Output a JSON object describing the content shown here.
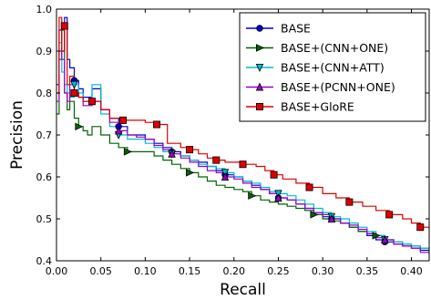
{
  "chart_data": {
    "type": "line",
    "title": "",
    "xlabel": "Recall",
    "ylabel": "Precision",
    "xlim": [
      0.0,
      0.42
    ],
    "ylim": [
      0.4,
      1.0
    ],
    "xticks": [
      "0.00",
      "0.05",
      "0.10",
      "0.15",
      "0.20",
      "0.25",
      "0.30",
      "0.35",
      "0.40"
    ],
    "yticks": [
      "0.4",
      "0.5",
      "0.6",
      "0.7",
      "0.8",
      "0.9",
      "1.0"
    ],
    "grid": false,
    "legend_position": "top-right",
    "series": [
      {
        "name": "BASE",
        "color": "#0000cc",
        "marker": "circle",
        "x": [
          0.0,
          0.003,
          0.006,
          0.009,
          0.012,
          0.015,
          0.02,
          0.025,
          0.03,
          0.04,
          0.05,
          0.06,
          0.07,
          0.08,
          0.09,
          0.1,
          0.11,
          0.12,
          0.13,
          0.14,
          0.15,
          0.16,
          0.17,
          0.18,
          0.19,
          0.2,
          0.21,
          0.22,
          0.23,
          0.24,
          0.25,
          0.26,
          0.27,
          0.28,
          0.29,
          0.3,
          0.31,
          0.32,
          0.33,
          0.34,
          0.35,
          0.36,
          0.37,
          0.38,
          0.39,
          0.4,
          0.41,
          0.42
        ],
        "y": [
          0.82,
          0.95,
          0.9,
          0.98,
          0.88,
          0.86,
          0.83,
          0.81,
          0.79,
          0.81,
          0.76,
          0.74,
          0.72,
          0.7,
          0.7,
          0.69,
          0.68,
          0.67,
          0.66,
          0.65,
          0.64,
          0.635,
          0.625,
          0.615,
          0.605,
          0.6,
          0.59,
          0.58,
          0.57,
          0.56,
          0.55,
          0.545,
          0.535,
          0.525,
          0.515,
          0.505,
          0.5,
          0.49,
          0.48,
          0.47,
          0.46,
          0.45,
          0.445,
          0.44,
          0.435,
          0.43,
          0.425,
          0.42
        ]
      },
      {
        "name": "BASE+(CNN+ONE)",
        "color": "#006400",
        "marker": "triangle-right",
        "x": [
          0.0,
          0.003,
          0.006,
          0.009,
          0.012,
          0.015,
          0.02,
          0.025,
          0.03,
          0.035,
          0.04,
          0.05,
          0.06,
          0.07,
          0.08,
          0.09,
          0.1,
          0.11,
          0.12,
          0.13,
          0.14,
          0.15,
          0.16,
          0.17,
          0.18,
          0.19,
          0.2,
          0.21,
          0.22,
          0.23,
          0.24,
          0.25,
          0.26,
          0.27,
          0.28,
          0.29,
          0.3,
          0.31,
          0.32,
          0.33,
          0.34,
          0.35,
          0.36,
          0.37,
          0.38,
          0.39,
          0.4,
          0.41,
          0.42
        ],
        "y": [
          0.75,
          0.88,
          0.95,
          0.8,
          0.76,
          0.78,
          0.74,
          0.72,
          0.71,
          0.7,
          0.72,
          0.7,
          0.68,
          0.67,
          0.66,
          0.66,
          0.66,
          0.65,
          0.64,
          0.63,
          0.62,
          0.61,
          0.6,
          0.59,
          0.58,
          0.575,
          0.57,
          0.565,
          0.555,
          0.545,
          0.54,
          0.535,
          0.53,
          0.525,
          0.52,
          0.51,
          0.5,
          0.495,
          0.49,
          0.48,
          0.47,
          0.465,
          0.46,
          0.45,
          0.445,
          0.44,
          0.435,
          0.43,
          0.425
        ]
      },
      {
        "name": "BASE+(CNN+ATT)",
        "color": "#00bcd4",
        "marker": "triangle-down",
        "x": [
          0.0,
          0.003,
          0.006,
          0.009,
          0.012,
          0.015,
          0.02,
          0.025,
          0.03,
          0.04,
          0.05,
          0.06,
          0.07,
          0.08,
          0.09,
          0.1,
          0.11,
          0.12,
          0.13,
          0.14,
          0.15,
          0.16,
          0.17,
          0.18,
          0.19,
          0.2,
          0.21,
          0.22,
          0.23,
          0.24,
          0.25,
          0.26,
          0.27,
          0.28,
          0.29,
          0.3,
          0.31,
          0.32,
          0.33,
          0.34,
          0.35,
          0.36,
          0.37,
          0.38,
          0.39,
          0.4,
          0.41,
          0.42
        ],
        "y": [
          0.8,
          0.92,
          0.85,
          0.82,
          0.8,
          0.79,
          0.82,
          0.8,
          0.78,
          0.82,
          0.75,
          0.72,
          0.7,
          0.69,
          0.69,
          0.68,
          0.67,
          0.66,
          0.655,
          0.65,
          0.64,
          0.63,
          0.625,
          0.62,
          0.61,
          0.6,
          0.59,
          0.585,
          0.575,
          0.565,
          0.56,
          0.555,
          0.545,
          0.535,
          0.525,
          0.515,
          0.505,
          0.5,
          0.49,
          0.48,
          0.47,
          0.46,
          0.45,
          0.445,
          0.44,
          0.435,
          0.43,
          0.425
        ]
      },
      {
        "name": "BASE+(PCNN+ONE)",
        "color": "#9900cc",
        "marker": "triangle-up",
        "x": [
          0.0,
          0.003,
          0.006,
          0.009,
          0.012,
          0.015,
          0.02,
          0.025,
          0.03,
          0.04,
          0.05,
          0.06,
          0.07,
          0.08,
          0.09,
          0.1,
          0.11,
          0.12,
          0.13,
          0.14,
          0.15,
          0.16,
          0.17,
          0.18,
          0.19,
          0.2,
          0.21,
          0.22,
          0.23,
          0.24,
          0.25,
          0.26,
          0.27,
          0.28,
          0.29,
          0.3,
          0.31,
          0.32,
          0.33,
          0.34,
          0.35,
          0.36,
          0.37,
          0.38,
          0.39,
          0.4,
          0.41,
          0.42
        ],
        "y": [
          0.78,
          0.9,
          0.88,
          0.8,
          0.78,
          0.82,
          0.8,
          0.79,
          0.77,
          0.78,
          0.76,
          0.73,
          0.71,
          0.7,
          0.695,
          0.69,
          0.675,
          0.665,
          0.655,
          0.645,
          0.635,
          0.625,
          0.615,
          0.61,
          0.6,
          0.595,
          0.585,
          0.575,
          0.57,
          0.56,
          0.55,
          0.545,
          0.535,
          0.525,
          0.515,
          0.51,
          0.5,
          0.49,
          0.485,
          0.475,
          0.465,
          0.455,
          0.45,
          0.44,
          0.435,
          0.43,
          0.42,
          0.415
        ]
      },
      {
        "name": "BASE+GloRE",
        "color": "#dd0000",
        "marker": "square",
        "x": [
          0.0,
          0.003,
          0.006,
          0.009,
          0.012,
          0.015,
          0.02,
          0.025,
          0.03,
          0.04,
          0.05,
          0.06,
          0.075,
          0.09,
          0.1,
          0.113,
          0.125,
          0.14,
          0.15,
          0.16,
          0.17,
          0.18,
          0.19,
          0.2,
          0.21,
          0.225,
          0.235,
          0.245,
          0.255,
          0.27,
          0.285,
          0.3,
          0.315,
          0.33,
          0.345,
          0.36,
          0.375,
          0.39,
          0.4,
          0.41,
          0.42
        ],
        "y": [
          0.8,
          0.98,
          0.9,
          0.96,
          0.82,
          0.84,
          0.8,
          0.79,
          0.78,
          0.78,
          0.76,
          0.74,
          0.735,
          0.735,
          0.73,
          0.725,
          0.68,
          0.67,
          0.665,
          0.655,
          0.645,
          0.64,
          0.635,
          0.635,
          0.63,
          0.625,
          0.615,
          0.605,
          0.595,
          0.585,
          0.575,
          0.56,
          0.55,
          0.54,
          0.53,
          0.52,
          0.51,
          0.5,
          0.49,
          0.48,
          0.475
        ]
      }
    ]
  }
}
